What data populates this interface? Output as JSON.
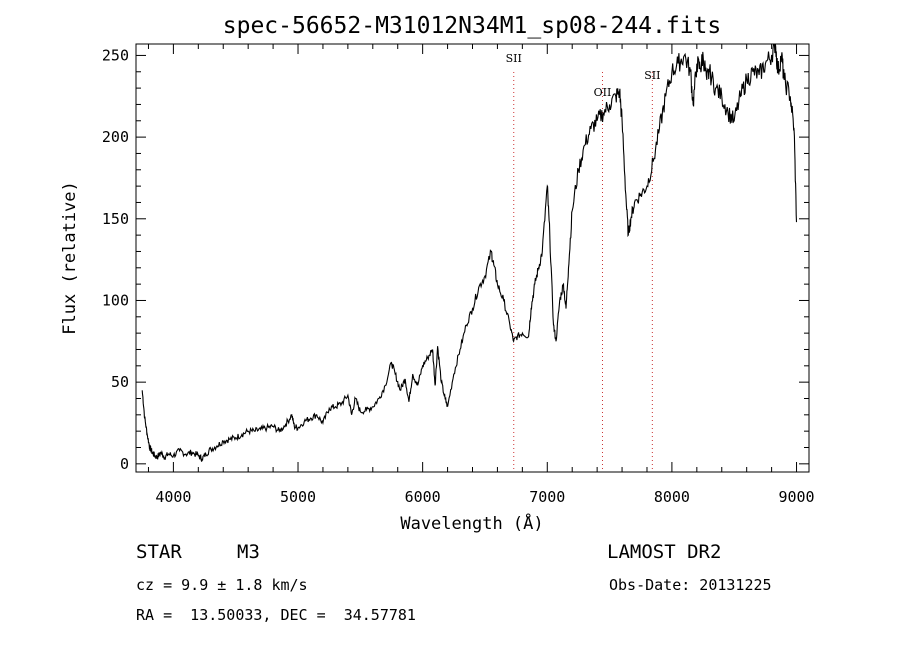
{
  "chart_data": {
    "type": "line",
    "title": "spec-56652-M31012N34M1_sp08-244.fits",
    "xlabel": "Wavelength (Å)",
    "ylabel": "Flux (relative)",
    "xlim": [
      3700,
      9100
    ],
    "ylim": [
      -5,
      257
    ],
    "xticks": [
      4000,
      5000,
      6000,
      7000,
      8000,
      9000
    ],
    "yticks": [
      0,
      50,
      100,
      150,
      200,
      250
    ],
    "grid": false,
    "series": [
      {
        "color": "#000000",
        "x": [
          3750,
          3770,
          3790,
          3810,
          3830,
          3850,
          3870,
          3900,
          3930,
          3960,
          4000,
          4050,
          4100,
          4150,
          4200,
          4230,
          4260,
          4300,
          4350,
          4400,
          4450,
          4500,
          4550,
          4600,
          4650,
          4700,
          4750,
          4800,
          4850,
          4900,
          4950,
          4970,
          5000,
          5050,
          5100,
          5150,
          5200,
          5250,
          5300,
          5350,
          5400,
          5430,
          5460,
          5500,
          5550,
          5600,
          5650,
          5700,
          5750,
          5780,
          5820,
          5860,
          5890,
          5920,
          5960,
          6000,
          6040,
          6080,
          6100,
          6120,
          6150,
          6180,
          6200,
          6250,
          6300,
          6350,
          6400,
          6450,
          6500,
          6550,
          6570,
          6600,
          6650,
          6700,
          6730,
          6760,
          6800,
          6850,
          6870,
          6900,
          6930,
          6960,
          7000,
          7020,
          7050,
          7070,
          7100,
          7130,
          7150,
          7170,
          7200,
          7250,
          7300,
          7350,
          7400,
          7450,
          7500,
          7550,
          7580,
          7600,
          7630,
          7650,
          7670,
          7700,
          7750,
          7800,
          7850,
          7900,
          7950,
          8000,
          8050,
          8100,
          8150,
          8170,
          8200,
          8230,
          8250,
          8280,
          8300,
          8350,
          8400,
          8450,
          8500,
          8550,
          8600,
          8650,
          8700,
          8750,
          8800,
          8830,
          8850,
          8880,
          8900,
          8950,
          8980,
          9000
        ],
        "y": [
          45,
          28,
          18,
          10,
          7,
          5,
          4,
          7,
          4,
          6,
          5,
          8,
          6,
          7,
          5,
          3,
          6,
          9,
          11,
          14,
          15,
          16,
          18,
          20,
          20,
          21,
          22,
          23,
          20,
          24,
          30,
          23,
          22,
          26,
          28,
          30,
          25,
          34,
          35,
          37,
          42,
          30,
          40,
          32,
          33,
          35,
          40,
          48,
          62,
          55,
          45,
          52,
          38,
          55,
          48,
          60,
          65,
          70,
          48,
          72,
          50,
          40,
          35,
          55,
          70,
          85,
          95,
          108,
          115,
          130,
          122,
          110,
          100,
          85,
          75,
          78,
          80,
          78,
          95,
          110,
          120,
          130,
          170,
          140,
          85,
          75,
          100,
          110,
          95,
          120,
          155,
          180,
          195,
          205,
          210,
          215,
          220,
          225,
          228,
          210,
          165,
          140,
          150,
          160,
          165,
          170,
          185,
          205,
          225,
          240,
          245,
          250,
          240,
          220,
          245,
          242,
          250,
          235,
          240,
          230,
          225,
          215,
          210,
          225,
          235,
          240,
          238,
          245,
          250,
          258,
          240,
          250,
          235,
          225,
          205,
          148
        ]
      }
    ],
    "annotations": [
      {
        "text": "SII",
        "x": 6731
      },
      {
        "text": "OII",
        "x": 7443
      },
      {
        "text": "SII",
        "x": 7843
      }
    ]
  },
  "info": {
    "object_class": "STAR",
    "subclass": "M3",
    "survey": "LAMOST DR2",
    "cz": "cz = 9.9 ± 1.8 km/s",
    "obs_date": "Obs-Date: 20131225",
    "coords": "RA =  13.50033, DEC =  34.57781"
  }
}
